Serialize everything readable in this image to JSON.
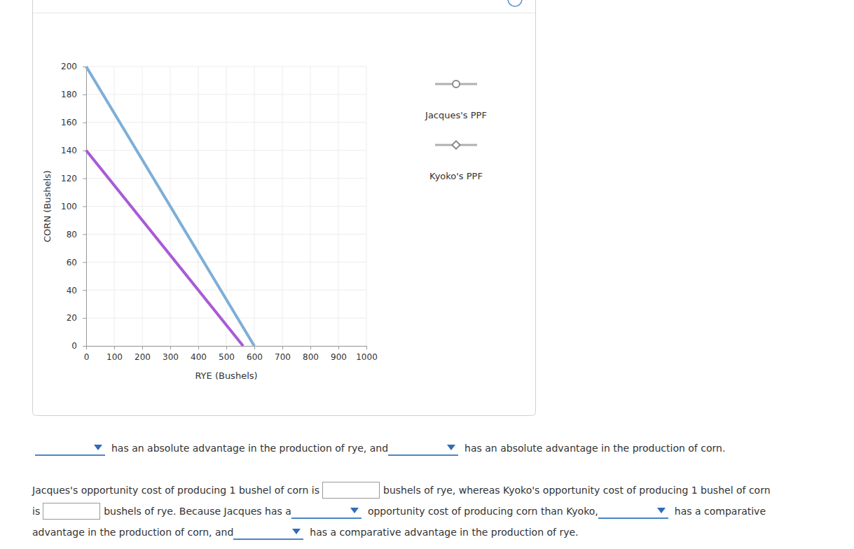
{
  "chart_data": {
    "type": "line",
    "xlabel": "RYE (Bushels)",
    "ylabel": "CORN (Bushels)",
    "xlim": [
      0,
      1000
    ],
    "xticks": [
      0,
      100,
      200,
      300,
      400,
      500,
      600,
      700,
      800,
      900,
      1000
    ],
    "ylim": [
      0,
      200
    ],
    "yticks": [
      0,
      20,
      40,
      60,
      80,
      100,
      120,
      140,
      160,
      180,
      200
    ],
    "grid": true,
    "legend": "right",
    "series": [
      {
        "name": "Jacques's PPF",
        "color": "#7eaed8",
        "marker": "circle",
        "x": [
          0,
          600
        ],
        "values": [
          200,
          0
        ]
      },
      {
        "name": "Kyoko's PPF",
        "color": "#a95ad6",
        "marker": "diamond",
        "x": [
          0,
          560
        ],
        "values": [
          140,
          0
        ]
      }
    ]
  },
  "question": {
    "lines": [
      [
        {
          "dropdown": true
        },
        {
          "text": "has an absolute advantage in the production of rye, and"
        },
        {
          "dropdown": true
        },
        {
          "text": "has an absolute advantage in the production of corn."
        }
      ],
      [
        {
          "text": "Jacques's opportunity cost of producing 1 bushel of corn is"
        },
        {
          "input": true
        },
        {
          "text": "bushels of rye, whereas Kyoko's opportunity cost of producing 1 bushel of corn"
        }
      ],
      [
        {
          "text": "is"
        },
        {
          "input": true
        },
        {
          "text": "bushels of rye. Because Jacques has a"
        },
        {
          "dropdown": true
        },
        {
          "text": "opportunity cost of producing corn than Kyoko,"
        },
        {
          "dropdown": true
        },
        {
          "text": "has a comparative"
        }
      ],
      [
        {
          "text": "advantage in the production of corn, and"
        },
        {
          "dropdown": true
        },
        {
          "text": "has a comparative advantage in the production of rye."
        }
      ]
    ]
  }
}
